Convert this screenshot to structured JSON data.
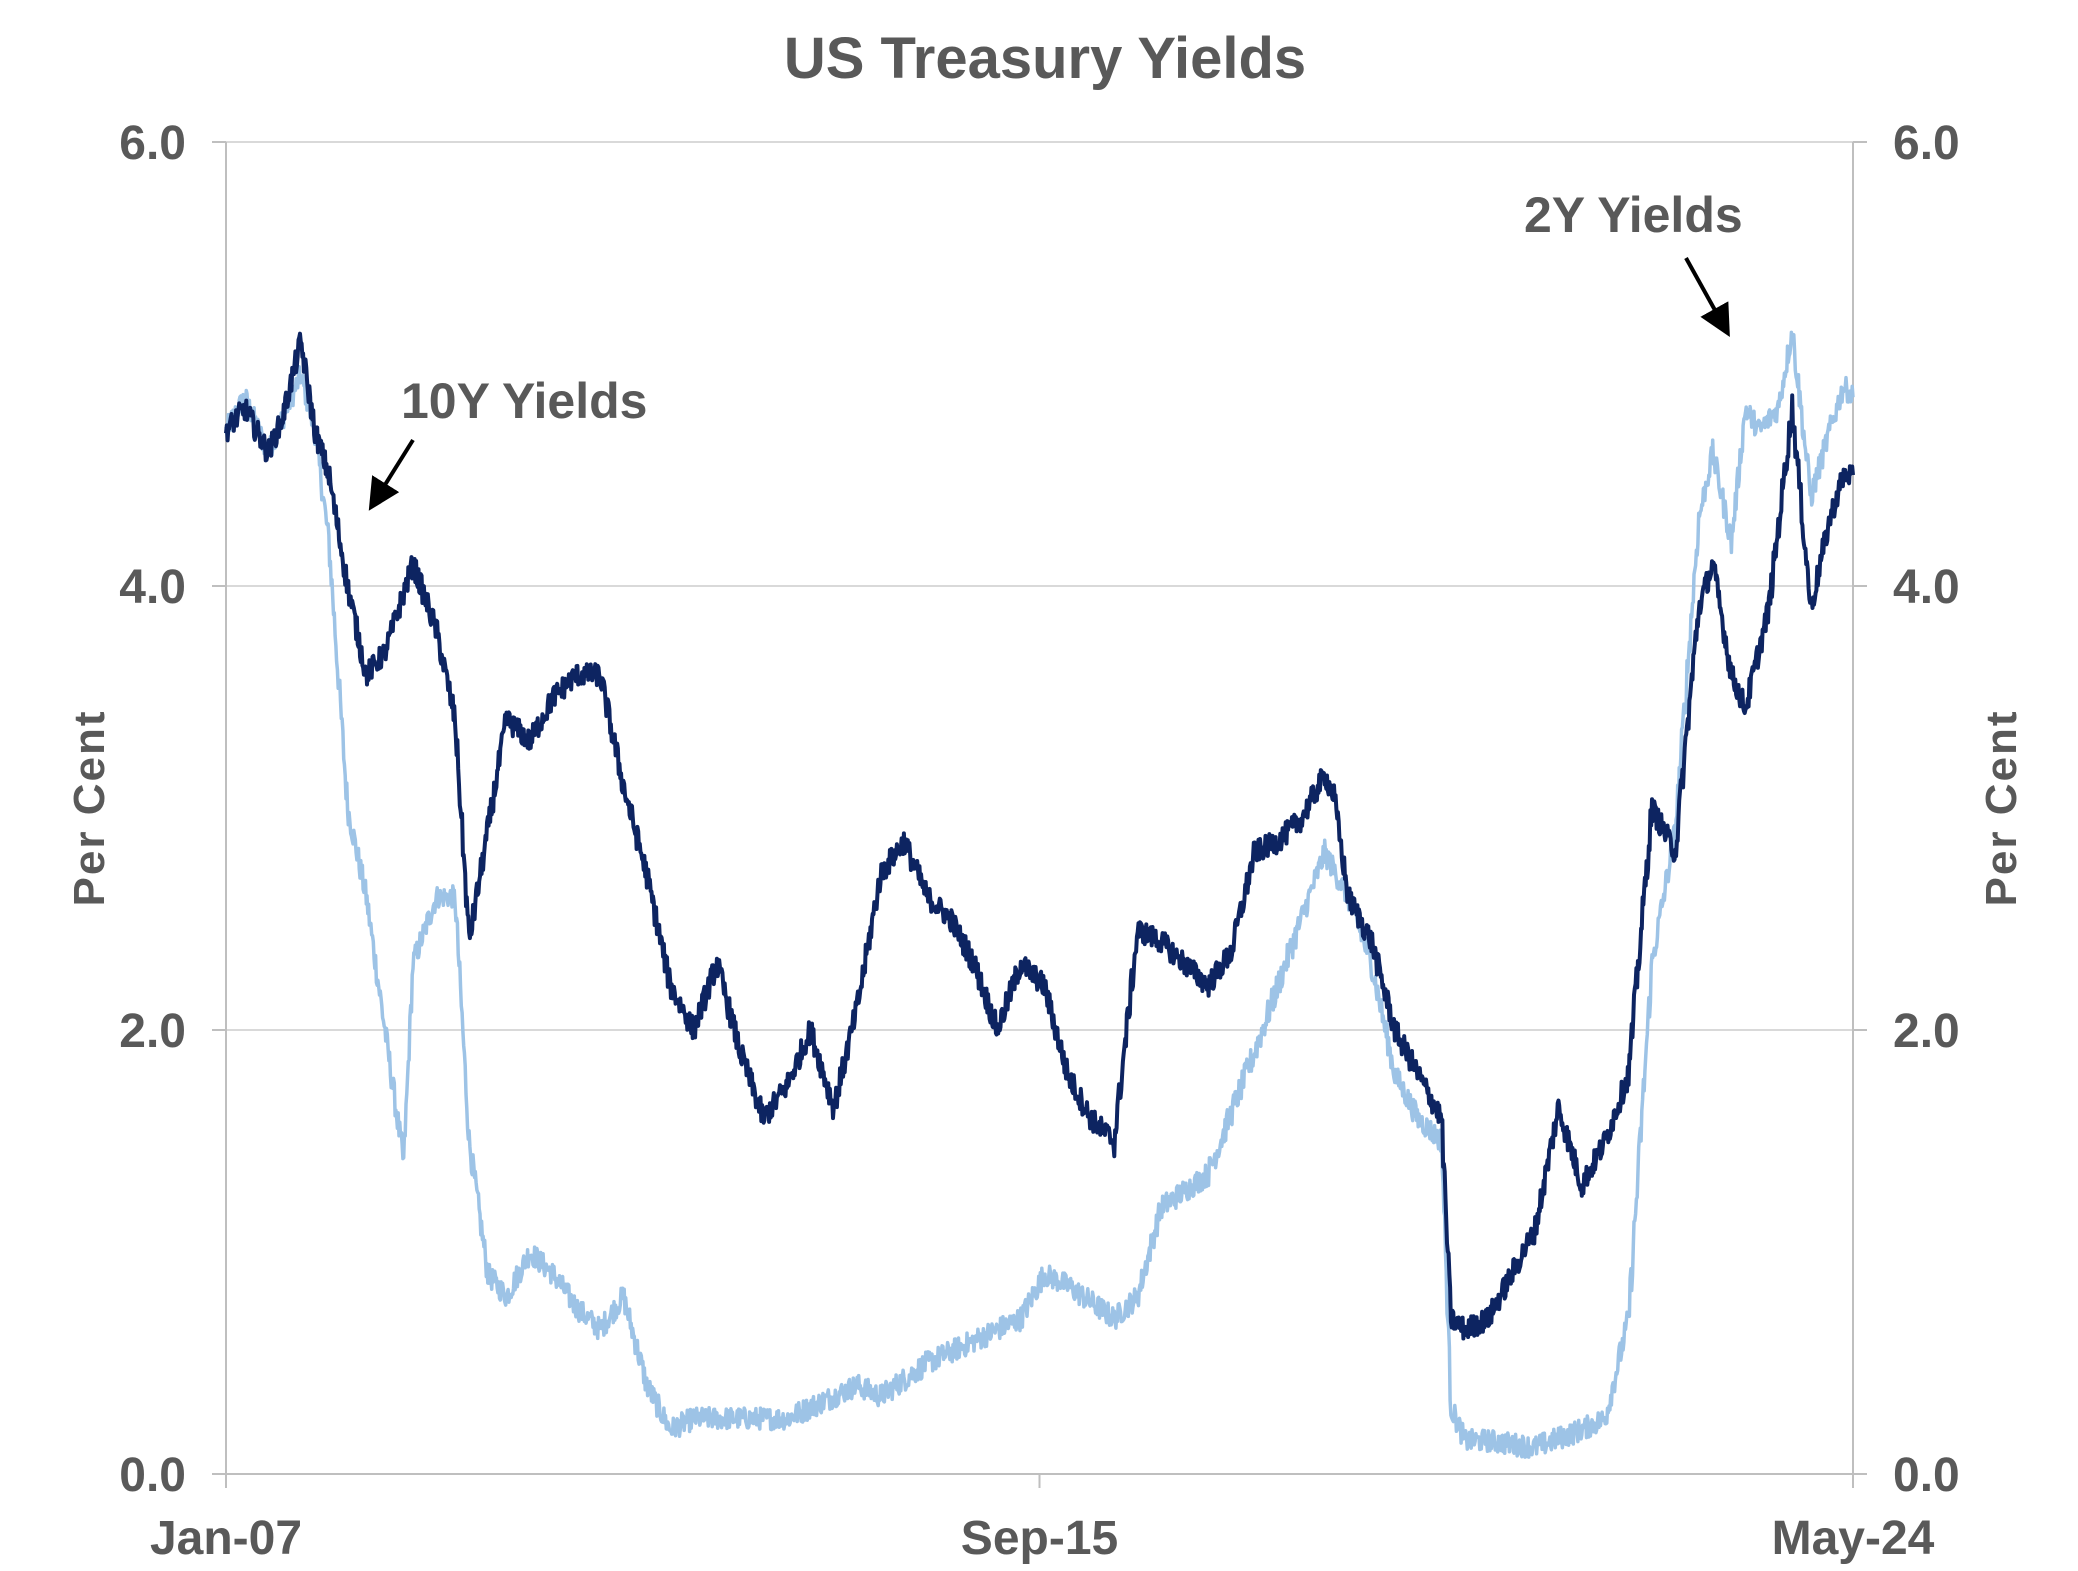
{
  "chart_data": {
    "type": "line",
    "title": "US Treasury Yields",
    "ylabel_left": "Per Cent",
    "ylabel_right": "Per Cent",
    "x_tick_labels": [
      "Jan-07",
      "Sep-15",
      "May-24"
    ],
    "y_tick_labels": [
      "0.0",
      "2.0",
      "4.0",
      "6.0"
    ],
    "ylim": [
      0,
      6
    ],
    "xlim": [
      2007.0,
      2024.4
    ],
    "grid": "horizontal",
    "series": [
      {
        "name": "2Y Yields",
        "color": "#9dc3e6",
        "x": [
          2007.0,
          2007.2,
          2007.45,
          2007.6,
          2007.8,
          2007.95,
          2008.1,
          2008.3,
          2008.5,
          2008.7,
          2008.9,
          2009.0,
          2009.25,
          2009.45,
          2009.6,
          2009.8,
          2010.0,
          2010.25,
          2010.5,
          2010.75,
          2011.0,
          2011.25,
          2011.5,
          2011.75,
          2012.0,
          2012.5,
          2013.0,
          2013.5,
          2013.75,
          2014.0,
          2014.5,
          2015.0,
          2015.5,
          2015.75,
          2016.0,
          2016.5,
          2016.75,
          2017.0,
          2017.5,
          2018.0,
          2018.5,
          2018.75,
          2019.0,
          2019.25,
          2019.5,
          2019.75,
          2020.0,
          2020.1,
          2020.25,
          2020.5,
          2021.0,
          2021.5,
          2021.75,
          2022.0,
          2022.25,
          2022.5,
          2022.75,
          2022.9,
          2023.1,
          2023.25,
          2023.4,
          2023.6,
          2023.75,
          2023.95,
          2024.15,
          2024.3,
          2024.4
        ],
        "values": [
          4.7,
          4.85,
          4.6,
          4.75,
          4.95,
          4.7,
          4.2,
          3.0,
          2.6,
          2.0,
          1.4,
          2.3,
          2.6,
          2.6,
          1.5,
          0.9,
          0.8,
          1.0,
          0.9,
          0.75,
          0.65,
          0.8,
          0.4,
          0.2,
          0.25,
          0.25,
          0.25,
          0.35,
          0.4,
          0.35,
          0.5,
          0.6,
          0.7,
          0.9,
          0.85,
          0.7,
          0.8,
          1.2,
          1.35,
          1.9,
          2.5,
          2.8,
          2.6,
          2.3,
          1.8,
          1.6,
          1.5,
          0.3,
          0.15,
          0.15,
          0.12,
          0.2,
          0.25,
          0.7,
          2.3,
          2.9,
          4.3,
          4.6,
          4.2,
          4.8,
          4.7,
          4.8,
          5.15,
          4.4,
          4.7,
          4.9,
          4.85
        ]
      },
      {
        "name": "10Y Yields",
        "color": "#0d2461",
        "x": [
          2007.0,
          2007.2,
          2007.45,
          2007.6,
          2007.8,
          2007.95,
          2008.1,
          2008.3,
          2008.5,
          2008.7,
          2008.85,
          2009.0,
          2009.25,
          2009.45,
          2009.6,
          2009.8,
          2010.0,
          2010.25,
          2010.5,
          2010.75,
          2011.0,
          2011.25,
          2011.5,
          2011.75,
          2012.0,
          2012.25,
          2012.5,
          2012.75,
          2013.0,
          2013.25,
          2013.5,
          2013.75,
          2014.0,
          2014.25,
          2014.5,
          2014.75,
          2015.0,
          2015.25,
          2015.5,
          2015.75,
          2016.0,
          2016.25,
          2016.5,
          2016.75,
          2017.0,
          2017.25,
          2017.5,
          2017.75,
          2018.0,
          2018.25,
          2018.5,
          2018.75,
          2018.85,
          2019.0,
          2019.25,
          2019.5,
          2019.75,
          2020.0,
          2020.1,
          2020.25,
          2020.5,
          2020.75,
          2021.0,
          2021.25,
          2021.5,
          2021.75,
          2022.0,
          2022.25,
          2022.5,
          2022.75,
          2022.9,
          2023.1,
          2023.25,
          2023.5,
          2023.75,
          2023.95,
          2024.15,
          2024.3,
          2024.4
        ],
        "values": [
          4.7,
          4.8,
          4.6,
          4.75,
          5.1,
          4.7,
          4.5,
          4.0,
          3.6,
          3.7,
          3.9,
          4.1,
          3.8,
          3.4,
          2.4,
          2.9,
          3.4,
          3.3,
          3.5,
          3.6,
          3.6,
          3.1,
          2.7,
          2.2,
          2.0,
          2.3,
          1.9,
          1.6,
          1.75,
          2.0,
          1.65,
          2.1,
          2.7,
          2.85,
          2.6,
          2.5,
          2.3,
          2.0,
          2.3,
          2.2,
          1.8,
          1.6,
          1.5,
          2.45,
          2.4,
          2.3,
          2.2,
          2.35,
          2.8,
          2.85,
          2.95,
          3.15,
          3.05,
          2.6,
          2.4,
          2.0,
          1.8,
          1.6,
          0.7,
          0.65,
          0.7,
          0.9,
          1.1,
          1.65,
          1.3,
          1.5,
          1.8,
          3.0,
          2.8,
          3.9,
          4.1,
          3.6,
          3.45,
          3.9,
          4.8,
          3.9,
          4.3,
          4.5,
          4.5
        ]
      }
    ],
    "annotations": [
      {
        "text": "10Y Yields",
        "points_to": "10Y Yields"
      },
      {
        "text": "2Y Yields",
        "points_to": "2Y Yields"
      }
    ]
  }
}
